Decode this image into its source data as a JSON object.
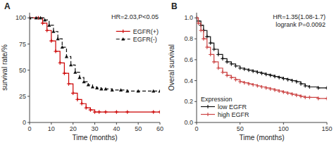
{
  "chart_data": [
    {
      "type": "step",
      "title": "A",
      "xlabel": "Time (months)",
      "ylabel": "survival rate/%",
      "xlim": [
        0,
        60
      ],
      "ylim": [
        0,
        105
      ],
      "xticks": [
        0,
        10,
        20,
        30,
        40,
        50,
        60
      ],
      "yticks": [
        0,
        25,
        50,
        75,
        100
      ],
      "annotations": [
        "HR=2.03,P<0.05"
      ],
      "grid": false,
      "legend": "upper right",
      "series": [
        {
          "name": "EGFR(+)",
          "color": "#cc0000",
          "line_style": "solid",
          "marker": "plus",
          "x": [
            0,
            4,
            6,
            8,
            10,
            12,
            14,
            16,
            18,
            20,
            22,
            24,
            26,
            28,
            30,
            32,
            35,
            40,
            45,
            57,
            60
          ],
          "values": [
            100,
            100,
            95,
            88,
            78,
            68,
            57,
            47,
            37,
            28,
            22,
            18,
            14,
            12,
            10,
            10,
            10,
            10,
            10,
            10,
            10
          ]
        },
        {
          "name": "EGFR(-)",
          "color": "#111111",
          "line_style": "dashed",
          "marker": "triangle",
          "x": [
            0,
            3,
            5,
            7,
            9,
            11,
            13,
            15,
            17,
            19,
            21,
            23,
            25,
            27,
            29,
            31,
            33,
            35,
            38,
            42,
            45,
            50,
            57,
            60
          ],
          "values": [
            100,
            100,
            100,
            98,
            93,
            87,
            80,
            72,
            63,
            55,
            48,
            43,
            39,
            36,
            34,
            33,
            32,
            32,
            31,
            31,
            30,
            30,
            30,
            30
          ]
        }
      ]
    },
    {
      "type": "step",
      "title": "B",
      "xlabel": "Time (months)",
      "ylabel": "Overal survival",
      "xlim": [
        0,
        150
      ],
      "ylim": [
        0.0,
        1.05
      ],
      "xticks": [
        0,
        50,
        100,
        150
      ],
      "yticks": [
        {
          "value": 0.0,
          "label": "0.0"
        },
        0.2,
        0.4,
        0.6,
        0.8,
        {
          "value": 1.0,
          "label": "1.0"
        }
      ],
      "annotations": [
        "HR=1.35(1.08-1.7)",
        "logrank P=0.0092"
      ],
      "grid": false,
      "legend": "lower left",
      "legend_title": "Expression",
      "series": [
        {
          "name": "low EGFR",
          "color": "#111111",
          "line_style": "solid",
          "marker": "plus",
          "x": [
            0,
            2,
            5,
            8,
            12,
            16,
            20,
            25,
            30,
            35,
            40,
            45,
            50,
            55,
            60,
            65,
            70,
            75,
            80,
            85,
            90,
            95,
            100,
            105,
            110,
            115,
            120,
            125,
            130,
            140,
            150
          ],
          "values": [
            1.0,
            0.97,
            0.93,
            0.88,
            0.82,
            0.76,
            0.7,
            0.65,
            0.61,
            0.58,
            0.56,
            0.54,
            0.52,
            0.51,
            0.5,
            0.49,
            0.48,
            0.47,
            0.46,
            0.45,
            0.44,
            0.43,
            0.42,
            0.41,
            0.4,
            0.39,
            0.37,
            0.35,
            0.34,
            0.33,
            0.33
          ]
        },
        {
          "name": "high EGFR",
          "color": "#cc4444",
          "line_style": "solid",
          "marker": "plus",
          "x": [
            0,
            2,
            5,
            8,
            12,
            16,
            20,
            25,
            30,
            35,
            40,
            45,
            50,
            55,
            60,
            65,
            70,
            75,
            80,
            85,
            90,
            95,
            100,
            105,
            110,
            115,
            120,
            125,
            130,
            140,
            150
          ],
          "values": [
            1.0,
            0.95,
            0.88,
            0.8,
            0.72,
            0.65,
            0.58,
            0.52,
            0.48,
            0.45,
            0.43,
            0.41,
            0.39,
            0.38,
            0.37,
            0.36,
            0.35,
            0.34,
            0.33,
            0.32,
            0.31,
            0.3,
            0.29,
            0.28,
            0.27,
            0.26,
            0.25,
            0.24,
            0.24,
            0.23,
            0.23
          ]
        }
      ]
    }
  ]
}
